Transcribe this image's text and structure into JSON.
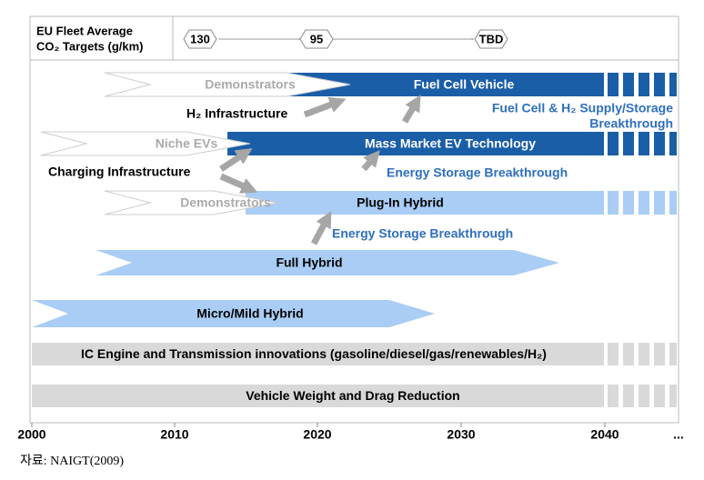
{
  "header": {
    "label_line1": "EU Fleet Average",
    "label_line2": "CO₂ Targets (g/km)",
    "targets": [
      "130",
      "95",
      "TBD"
    ]
  },
  "rows": [
    {
      "lead": "Demonstrators",
      "label": "Fuel Cell Vehicle"
    },
    {
      "lead": "Niche EVs",
      "label": "Mass Market EV Technology"
    },
    {
      "lead": "Demonstrators",
      "label": "Plug-In Hybrid"
    },
    {
      "label": "Full Hybrid"
    },
    {
      "label": "Micro/Mild Hybrid"
    },
    {
      "label": "IC Engine and Transmission innovations (gasoline/diesel/gas/renewables/H₂)"
    },
    {
      "label": "Vehicle Weight and Drag Reduction"
    }
  ],
  "annotations": {
    "h2_infrastructure": "H₂ Infrastructure",
    "fuel_cell_breakthrough_line1": "Fuel Cell & H₂ Supply/Storage",
    "fuel_cell_breakthrough_line2": "Breakthrough",
    "charging_infrastructure": "Charging Infrastructure",
    "energy_storage_1": "Energy Storage Breakthrough",
    "energy_storage_2": "Energy Storage Breakthrough"
  },
  "axis": [
    "2000",
    "2010",
    "2020",
    "2030",
    "2040",
    "..."
  ],
  "source": "자료: NAIGT(2009)"
}
